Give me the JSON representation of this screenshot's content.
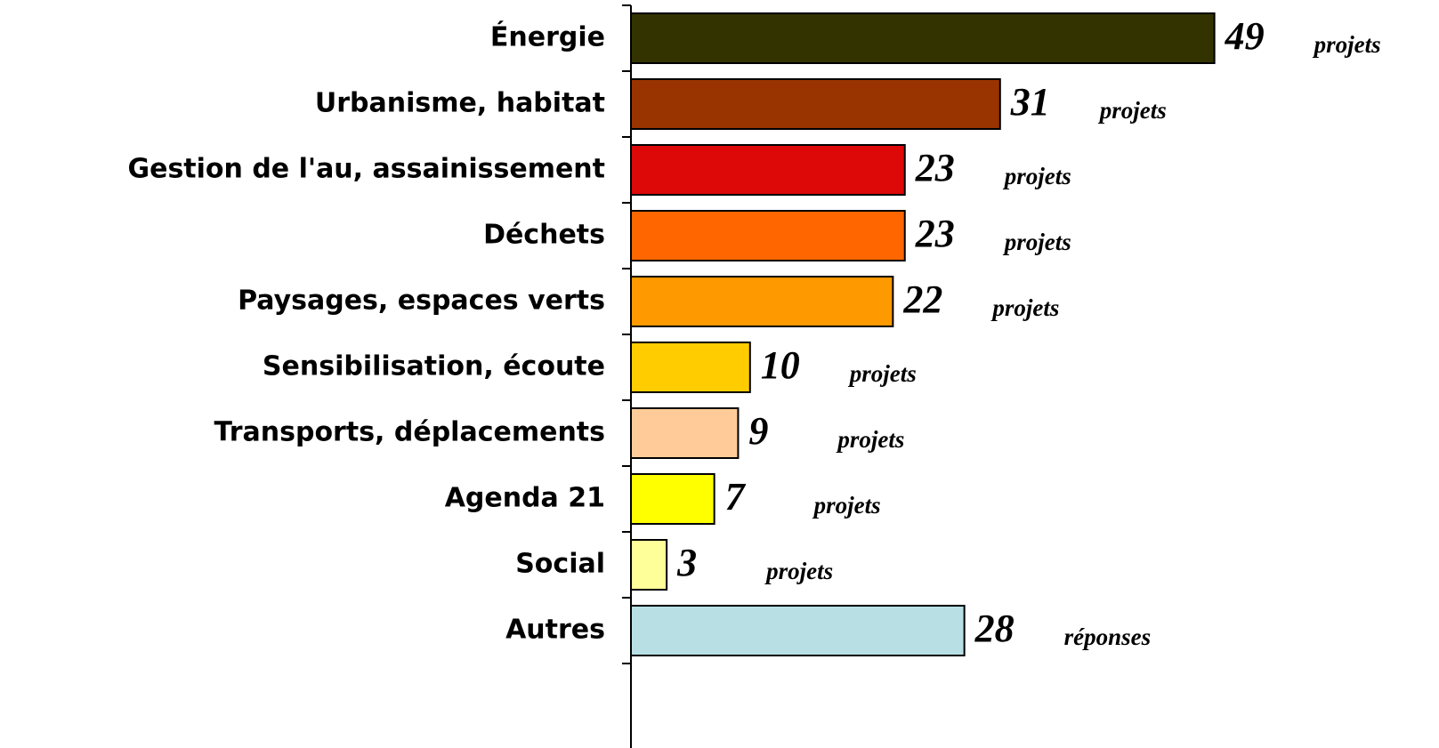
{
  "chart_data": {
    "type": "bar",
    "orientation": "horizontal",
    "categories": [
      "Énergie",
      "Urbanisme, habitat",
      "Gestion de l'au, assainissement",
      "Déchets",
      "Paysages, espaces verts",
      "Sensibilisation, écoute",
      "Transports, déplacements",
      "Agenda 21",
      "Social",
      "Autres"
    ],
    "values": [
      49,
      31,
      23,
      23,
      22,
      10,
      9,
      7,
      3,
      28
    ],
    "annotations": [
      "projets",
      "projets",
      "projets",
      "projets",
      "projets",
      "projets",
      "projets",
      "projets",
      "projets",
      "réponses"
    ],
    "colors": [
      "#333300",
      "#993300",
      "#dd0808",
      "#ff6600",
      "#ff9900",
      "#ffcc00",
      "#ffcc99",
      "#ffff00",
      "#ffff99",
      "#b8e0e4"
    ],
    "xlim": [
      0,
      50
    ]
  }
}
